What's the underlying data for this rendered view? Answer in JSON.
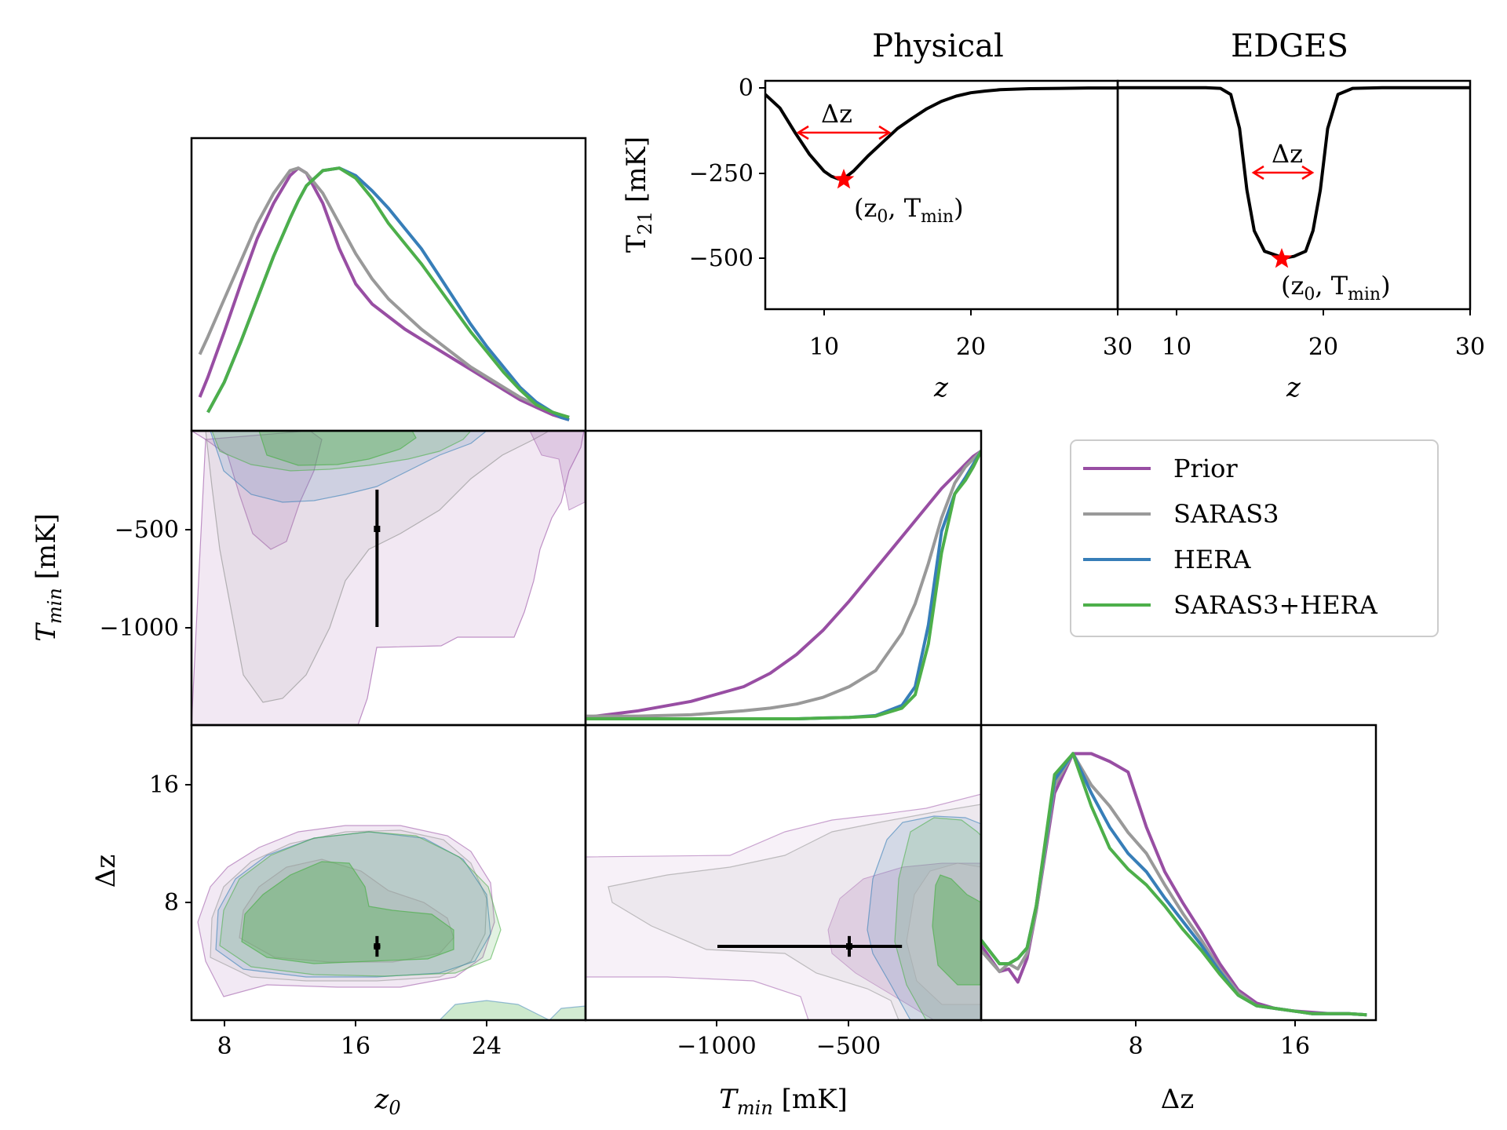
{
  "colors": {
    "prior": "#984ea3",
    "saras3": "#999999",
    "hera": "#377eb8",
    "combined": "#4daf4a",
    "marker": "#ff0000",
    "truth": "#000000"
  },
  "legend": {
    "placement": "right-middle",
    "entries": [
      "Prior",
      "SARAS3",
      "HERA",
      "SARAS3+HERA"
    ]
  },
  "chart_data": [
    {
      "id": "physical-signal",
      "type": "line",
      "title": "Physical",
      "xlabel": "z",
      "ylabel": "T21 [mK]",
      "xlim": [
        6,
        30
      ],
      "ylim": [
        -650,
        20
      ],
      "xticks": [
        10,
        20,
        30
      ],
      "yticks": [
        0,
        -250,
        -500
      ],
      "x": [
        6,
        7,
        8,
        9,
        10,
        10.5,
        11,
        11.5,
        12,
        13,
        14,
        15,
        16,
        17,
        18,
        19,
        20,
        21,
        22,
        24,
        26,
        28,
        30
      ],
      "y": [
        -20,
        -60,
        -130,
        -195,
        -245,
        -260,
        -268,
        -262,
        -245,
        -200,
        -160,
        -120,
        -90,
        -62,
        -40,
        -25,
        -15,
        -10,
        -6,
        -3,
        -2,
        -1,
        -1
      ],
      "annotations": [
        {
          "text": "Δz",
          "x_from": 8.0,
          "x_to": 14.5,
          "y": -130
        },
        {
          "text": "(z0, Tmin)",
          "x": 11.2,
          "y": -268
        }
      ]
    },
    {
      "id": "edges-signal",
      "type": "line",
      "title": "EDGES",
      "xlabel": "z",
      "xlim": [
        6,
        30
      ],
      "ylim": [
        -650,
        20
      ],
      "xticks": [
        10,
        20,
        30
      ],
      "x": [
        6,
        10,
        12,
        13,
        13.7,
        14.3,
        14.8,
        15.3,
        16,
        17,
        17.3,
        18,
        18.8,
        19.3,
        19.8,
        20.3,
        21,
        22,
        24,
        26,
        30
      ],
      "y": [
        0,
        0,
        0,
        -2,
        -20,
        -120,
        -300,
        -420,
        -480,
        -495,
        -500,
        -495,
        -480,
        -420,
        -300,
        -120,
        -20,
        -2,
        0,
        0,
        0
      ],
      "annotations": [
        {
          "text": "Δz",
          "x_from": 15.3,
          "x_to": 19.3,
          "y": -250
        },
        {
          "text": "(z0, Tmin)",
          "x": 17.3,
          "y": -500
        }
      ]
    },
    {
      "id": "z0-marginal",
      "type": "line",
      "xlim": [
        6,
        30
      ],
      "x": [
        6.5,
        7,
        8,
        9,
        10,
        11,
        12,
        12.5,
        13,
        14,
        15,
        16,
        17,
        18,
        19,
        20,
        21,
        22,
        23,
        24,
        25,
        26,
        27,
        28,
        28.5,
        29
      ],
      "series": [
        {
          "name": "Prior",
          "values": [
            0.09,
            0.17,
            0.35,
            0.54,
            0.72,
            0.86,
            0.97,
            1.0,
            0.98,
            0.86,
            0.68,
            0.54,
            0.46,
            0.41,
            0.36,
            0.32,
            0.28,
            0.24,
            0.2,
            0.16,
            0.12,
            0.08,
            0.05,
            0.02,
            0.01,
            0.0
          ]
        },
        {
          "name": "SARAS3",
          "values": [
            0.26,
            0.33,
            0.48,
            0.63,
            0.78,
            0.9,
            0.99,
            1.0,
            0.98,
            0.9,
            0.78,
            0.66,
            0.56,
            0.48,
            0.42,
            0.36,
            0.31,
            0.26,
            0.21,
            0.17,
            0.13,
            0.09,
            0.06,
            0.03,
            0.02,
            0.01
          ]
        },
        {
          "name": "HERA",
          "values": [
            null,
            0.03,
            0.15,
            0.31,
            0.48,
            0.65,
            0.8,
            0.87,
            0.93,
            0.99,
            1.0,
            0.97,
            0.91,
            0.84,
            0.76,
            0.68,
            0.58,
            0.48,
            0.38,
            0.29,
            0.21,
            0.13,
            0.07,
            0.03,
            0.01,
            0.0
          ]
        },
        {
          "name": "SARAS3+HERA",
          "values": [
            null,
            0.03,
            0.15,
            0.31,
            0.48,
            0.65,
            0.8,
            0.87,
            0.93,
            0.99,
            1.0,
            0.96,
            0.88,
            0.78,
            0.7,
            0.62,
            0.53,
            0.44,
            0.35,
            0.27,
            0.19,
            0.12,
            0.06,
            0.03,
            0.02,
            0.01
          ]
        }
      ]
    },
    {
      "id": "tmin-marginal",
      "type": "line",
      "xlim": [
        -1500,
        0
      ],
      "x": [
        -1500,
        -1300,
        -1100,
        -900,
        -800,
        -700,
        -600,
        -500,
        -400,
        -300,
        -250,
        -200,
        -150,
        -100,
        -60,
        -30,
        0
      ],
      "series": [
        {
          "name": "Prior",
          "values": [
            0.005,
            0.03,
            0.065,
            0.12,
            0.17,
            0.24,
            0.33,
            0.44,
            0.56,
            0.68,
            0.74,
            0.8,
            0.86,
            0.91,
            0.95,
            0.98,
            1.0
          ]
        },
        {
          "name": "SARAS3",
          "values": [
            0.01,
            0.01,
            0.015,
            0.03,
            0.04,
            0.055,
            0.08,
            0.12,
            0.18,
            0.32,
            0.43,
            0.58,
            0.75,
            0.88,
            0.94,
            0.97,
            1.0
          ]
        },
        {
          "name": "HERA",
          "values": [
            0,
            0,
            0,
            0,
            0,
            0,
            0.003,
            0.005,
            0.012,
            0.05,
            0.12,
            0.35,
            0.7,
            0.84,
            0.9,
            0.95,
            1.0
          ]
        },
        {
          "name": "SARAS3+HERA",
          "values": [
            0,
            0,
            0,
            0,
            0,
            0,
            0.003,
            0.005,
            0.01,
            0.04,
            0.09,
            0.28,
            0.62,
            0.84,
            0.89,
            0.94,
            1.0
          ]
        }
      ]
    },
    {
      "id": "dz-marginal",
      "type": "line",
      "xlabel": "Δz",
      "xlim": [
        0,
        21.5
      ],
      "xticks": [
        8,
        16
      ],
      "x": [
        0,
        1,
        1.5,
        2,
        2.5,
        3,
        4,
        5,
        6,
        7,
        8,
        9,
        10,
        11,
        12,
        13,
        14,
        15,
        16,
        17,
        18,
        19,
        20,
        21
      ],
      "series": [
        {
          "name": "Prior",
          "values": [
            0.27,
            0.17,
            0.18,
            0.13,
            0.22,
            0.4,
            0.85,
            1.0,
            1.0,
            0.97,
            0.93,
            0.72,
            0.55,
            0.43,
            0.32,
            0.2,
            0.1,
            0.05,
            0.03,
            0.02,
            0.015,
            0.01,
            0.01,
            0.005
          ]
        },
        {
          "name": "SARAS3",
          "values": [
            0.25,
            0.17,
            0.2,
            0.18,
            0.24,
            0.4,
            0.88,
            1.0,
            0.88,
            0.8,
            0.7,
            0.62,
            0.5,
            0.39,
            0.29,
            0.18,
            0.09,
            0.04,
            0.03,
            0.02,
            0.01,
            0.01,
            0.01,
            0.005
          ]
        },
        {
          "name": "HERA",
          "values": [
            0.29,
            0.2,
            0.2,
            0.22,
            0.26,
            0.42,
            0.9,
            1.0,
            0.85,
            0.72,
            0.62,
            0.55,
            0.45,
            0.36,
            0.27,
            0.17,
            0.08,
            0.04,
            0.03,
            0.02,
            0.01,
            0.01,
            0.01,
            0.005
          ]
        },
        {
          "name": "SARAS3+HERA",
          "values": [
            0.29,
            0.2,
            0.2,
            0.22,
            0.26,
            0.42,
            0.92,
            1.0,
            0.8,
            0.64,
            0.56,
            0.5,
            0.42,
            0.33,
            0.25,
            0.16,
            0.08,
            0.04,
            0.03,
            0.02,
            0.01,
            0.01,
            0.01,
            0.005
          ]
        }
      ]
    },
    {
      "id": "z0-tmin-contours",
      "type": "scatter",
      "ylabel": "T_min [mK]",
      "xlim": [
        6,
        30
      ],
      "ylim": [
        -1500,
        0
      ],
      "yticks": [
        -500,
        -1000
      ],
      "truth": {
        "x": 17.3,
        "y": -500,
        "yerr_low": 500,
        "yerr_high": 200
      }
    },
    {
      "id": "z0-dz-contours",
      "type": "scatter",
      "xlabel": "z0",
      "ylabel": "Δz",
      "xlim": [
        6,
        30
      ],
      "ylim": [
        0,
        20
      ],
      "xticks": [
        8,
        16,
        24
      ],
      "yticks": [
        8,
        16
      ],
      "truth": {
        "x": 17.3,
        "y": 5.0,
        "xerr": 0.2,
        "yerr": 0.7
      }
    },
    {
      "id": "tmin-dz-contours",
      "type": "scatter",
      "xlabel": "T_min [mK]",
      "xlim": [
        -1500,
        0
      ],
      "ylim": [
        0,
        20
      ],
      "xticks": [
        -1000,
        -500
      ],
      "truth": {
        "x": -500,
        "y": 5.0,
        "xerr_low": 500,
        "xerr_high": 200,
        "yerr": 0.7
      }
    }
  ]
}
